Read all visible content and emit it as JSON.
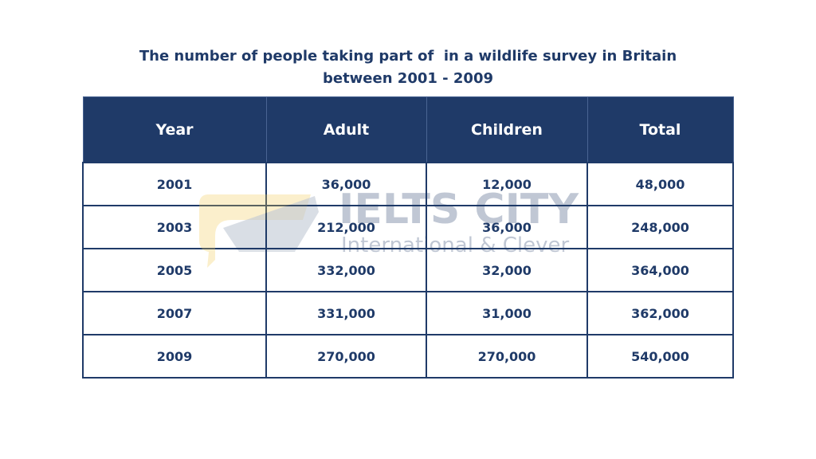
{
  "header": {
    "title_lines": [
      "The number of people taking part of  in a wildlife survey in Britain",
      "between 2001 - 2009"
    ]
  },
  "watermark": {
    "title": "IELTS CITY",
    "subtitle": "International & Clever"
  },
  "table": {
    "columns": [
      "Year",
      "Adult",
      "Children",
      "Total"
    ],
    "rows": [
      [
        "2001",
        "36,000",
        "12,000",
        "48,000"
      ],
      [
        "2003",
        "212,000",
        "36,000",
        "248,000"
      ],
      [
        "2005",
        "332,000",
        "32,000",
        "364,000"
      ],
      [
        "2007",
        "331,000",
        "31,000",
        "362,000"
      ],
      [
        "2009",
        "270,000",
        "270,000",
        "540,000"
      ]
    ]
  }
}
